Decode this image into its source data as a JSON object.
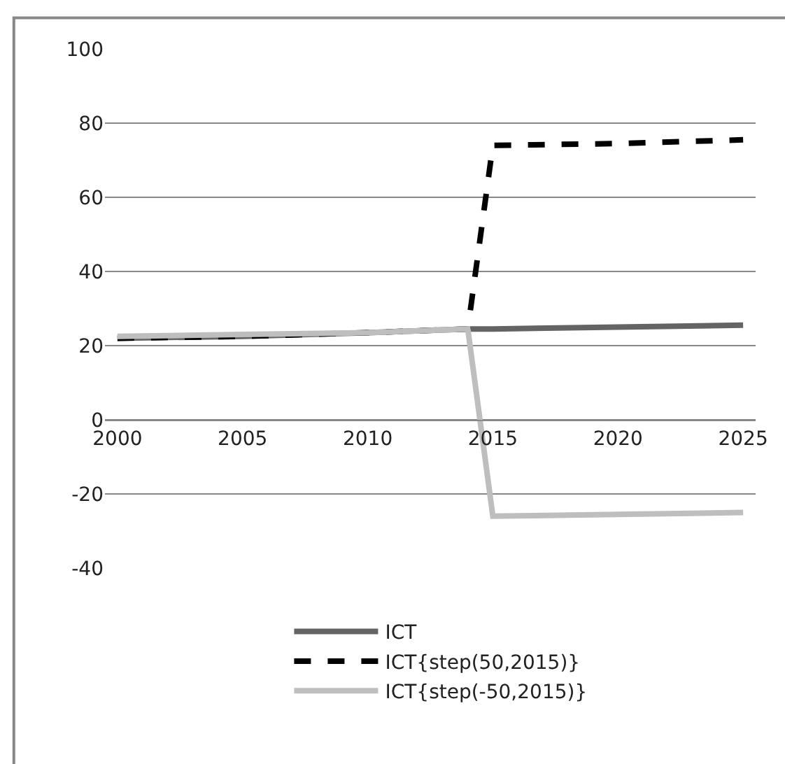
{
  "chart_data": {
    "type": "line",
    "series": [
      {
        "name": "ICT",
        "color": "#646464",
        "x": [
          2000,
          2005,
          2010,
          2014,
          2015,
          2020,
          2025
        ],
        "values": [
          22,
          22.5,
          23.5,
          24.5,
          24.5,
          25,
          25.5
        ]
      },
      {
        "name": "ICT{step(50,2015)}",
        "color": "#000000",
        "line_style": "dashed",
        "x": [
          2000,
          2005,
          2010,
          2014,
          2015,
          2020,
          2025
        ],
        "values": [
          22,
          22.5,
          23.5,
          24.5,
          74,
          74.5,
          75.5
        ]
      },
      {
        "name": "ICT{step(-50,2015)}",
        "color": "#bebebe",
        "x": [
          2000,
          2005,
          2010,
          2014,
          2015,
          2020,
          2025
        ],
        "values": [
          22.5,
          23,
          23.5,
          24.5,
          -26,
          -25.5,
          -25
        ]
      }
    ],
    "xlim": [
      1999.5,
      2025.5
    ],
    "xticks": [
      2000,
      2005,
      2010,
      2015,
      2020,
      2025
    ],
    "ylim": [
      -40,
      100
    ],
    "yticks": [
      -40,
      -20,
      0,
      20,
      40,
      60,
      80,
      100
    ],
    "grid": "y",
    "legend": "bottom",
    "line_style": "solid",
    "marker": "none"
  }
}
